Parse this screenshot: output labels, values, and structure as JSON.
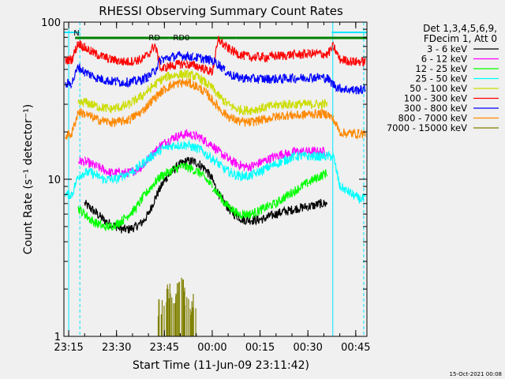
{
  "page": {
    "title": "RHESSI Observing Summary Count Rates",
    "xlabel": "Start Time (11-Jun-09 23:11:42)",
    "ylabel": "Count Rate (s⁻¹ detector⁻¹)",
    "timestamp": "15-Oct-2021 00:08",
    "legend_header": [
      "Det 1,3,4,5,6,9,",
      "FDecim 1, Att 0"
    ]
  },
  "chart_data": {
    "type": "line",
    "title": "RHESSI Observing Summary Count Rates",
    "xlabel": "Start Time (11-Jun-09 23:11:42)",
    "ylabel": "Count Rate (s⁻¹ detector⁻¹)",
    "x_unit": "minutes relative to 00:00 (11/12-Jun-09)",
    "xlim": [
      -46.5,
      48.5
    ],
    "ylim": [
      1,
      100
    ],
    "yscale": "log",
    "grid": false,
    "legend_position": "right",
    "x_ticks": [
      {
        "value": -45,
        "label": "23:15"
      },
      {
        "value": -30,
        "label": "23:30"
      },
      {
        "value": -15,
        "label": "23:45"
      },
      {
        "value": 0,
        "label": "00:00"
      },
      {
        "value": 15,
        "label": "00:15"
      },
      {
        "value": 30,
        "label": "00:30"
      },
      {
        "value": 45,
        "label": "00:45"
      }
    ],
    "y_ticks": [
      {
        "value": 1,
        "label": "1"
      },
      {
        "value": 10,
        "label": "10"
      },
      {
        "value": 100,
        "label": "100"
      }
    ],
    "x": [
      -46,
      -44,
      -42,
      -40,
      -38,
      -36,
      -34,
      -32,
      -30,
      -28,
      -26,
      -24,
      -22,
      -20,
      -18,
      -16,
      -14,
      -12,
      -10,
      -8,
      -6,
      -4,
      -2,
      0,
      2,
      4,
      6,
      8,
      10,
      12,
      14,
      16,
      18,
      20,
      22,
      24,
      26,
      28,
      30,
      32,
      34,
      36,
      38,
      40,
      42,
      44,
      46,
      48
    ],
    "gaps": [
      [
        -45.5,
        -44.5
      ],
      [
        -37.5,
        -36.5
      ],
      [
        37.5,
        38.5
      ],
      [
        46.5,
        47.5
      ]
    ],
    "series": [
      {
        "name": "3 - 6 keV",
        "color": "#000000",
        "values": [
          null,
          null,
          null,
          7.0,
          6.5,
          6.0,
          5.5,
          5.2,
          5.0,
          4.8,
          4.8,
          5.0,
          5.3,
          6.0,
          7.5,
          9.0,
          10.5,
          11.5,
          12.5,
          13.0,
          13.0,
          12.5,
          11.5,
          10.0,
          8.0,
          7.0,
          6.2,
          5.8,
          5.5,
          5.5,
          5.5,
          5.6,
          5.8,
          6.0,
          6.2,
          6.3,
          6.5,
          6.6,
          6.7,
          6.8,
          7.0,
          7.0,
          null,
          null,
          null,
          null,
          null,
          null
        ]
      },
      {
        "name": "6 - 12 keV",
        "color": "#ff00ff",
        "values": [
          null,
          null,
          13.0,
          13.0,
          12.5,
          12.0,
          11.5,
          11.0,
          11.0,
          11.0,
          11.0,
          11.5,
          12.0,
          13.5,
          15.0,
          16.5,
          17.5,
          18.5,
          19.0,
          19.5,
          19.0,
          18.5,
          17.5,
          16.5,
          15.0,
          14.0,
          13.0,
          12.5,
          12.0,
          12.0,
          12.5,
          13.0,
          13.5,
          14.0,
          14.5,
          14.5,
          15.0,
          15.0,
          15.0,
          15.0,
          15.0,
          15.0,
          null,
          null,
          null,
          null,
          null,
          null
        ]
      },
      {
        "name": "12 - 25 keV",
        "color": "#00ff00",
        "values": [
          null,
          null,
          6.5,
          6.0,
          5.5,
          5.2,
          5.0,
          5.0,
          5.2,
          5.5,
          6.0,
          6.5,
          7.5,
          8.5,
          9.5,
          10.5,
          11.0,
          11.5,
          12.0,
          12.0,
          11.5,
          11.0,
          10.0,
          9.0,
          8.0,
          7.0,
          6.5,
          6.0,
          6.0,
          6.0,
          6.2,
          6.5,
          6.8,
          7.0,
          7.5,
          8.0,
          8.5,
          9.0,
          9.5,
          10.0,
          10.5,
          11.0,
          null,
          null,
          null,
          null,
          null,
          null
        ]
      },
      {
        "name": "25 - 50 keV",
        "color": "#00ffff",
        "values": [
          8.0,
          8.0,
          10.5,
          11.0,
          11.0,
          10.5,
          10.0,
          10.0,
          10.0,
          10.5,
          11.0,
          11.5,
          12.5,
          13.5,
          14.5,
          15.5,
          16.0,
          16.5,
          16.5,
          16.5,
          16.0,
          15.5,
          14.5,
          13.5,
          12.5,
          11.5,
          11.0,
          10.5,
          10.5,
          10.5,
          11.0,
          11.5,
          12.0,
          12.5,
          13.0,
          13.5,
          14.0,
          14.0,
          14.0,
          14.0,
          14.0,
          14.0,
          14.0,
          9.0,
          8.5,
          8.0,
          7.5,
          7.5
        ]
      },
      {
        "name": "50 - 100 keV",
        "color": "#ccdd00",
        "values": [
          null,
          null,
          30.0,
          31.0,
          30.0,
          29.0,
          28.5,
          28.0,
          28.5,
          29.0,
          30.0,
          32.0,
          34.0,
          37.0,
          40.0,
          43.0,
          45.0,
          46.0,
          46.5,
          46.5,
          45.5,
          44.0,
          41.0,
          38.0,
          34.0,
          31.0,
          29.0,
          28.0,
          27.5,
          27.5,
          28.0,
          28.5,
          29.0,
          29.5,
          30.0,
          30.0,
          30.0,
          30.0,
          30.0,
          30.0,
          30.0,
          30.0,
          null,
          null,
          null,
          null,
          null,
          null
        ]
      },
      {
        "name": "100 - 300 keV",
        "color": "#ff0000",
        "values": [
          57.0,
          58.0,
          74.0,
          69.0,
          65.0,
          62.0,
          60.0,
          58.0,
          57.0,
          56.0,
          56.0,
          57.0,
          58.0,
          62.0,
          72.0,
          50.0,
          52.0,
          53.0,
          54.0,
          54.0,
          53.0,
          52.0,
          50.0,
          48.0,
          78.0,
          70.0,
          66.0,
          63.0,
          61.0,
          60.0,
          60.0,
          60.0,
          60.0,
          61.0,
          61.0,
          62.0,
          62.0,
          62.0,
          63.0,
          63.0,
          63.0,
          62.0,
          70.0,
          58.0,
          57.0,
          56.0,
          56.0,
          56.0
        ]
      },
      {
        "name": "300 - 800 keV",
        "color": "#0000ff",
        "values": [
          40.0,
          41.0,
          52.0,
          48.0,
          46.0,
          44.0,
          43.0,
          42.0,
          42.0,
          41.5,
          41.5,
          42.0,
          43.0,
          45.0,
          49.0,
          58.0,
          59.0,
          60.0,
          61.0,
          61.0,
          60.0,
          59.0,
          58.0,
          57.0,
          54.0,
          49.0,
          46.0,
          44.5,
          44.0,
          43.5,
          43.5,
          43.5,
          43.5,
          43.5,
          43.5,
          44.0,
          44.0,
          44.0,
          44.5,
          44.5,
          44.5,
          44.0,
          40.0,
          38.0,
          37.5,
          37.0,
          37.0,
          37.0
        ]
      },
      {
        "name": "800 - 7000 keV",
        "color": "#ff8800",
        "values": [
          19.0,
          19.5,
          27.0,
          26.0,
          25.0,
          24.0,
          23.5,
          23.0,
          23.0,
          23.5,
          24.0,
          25.5,
          27.0,
          30.0,
          33.0,
          36.0,
          38.5,
          40.0,
          41.0,
          41.0,
          40.0,
          38.0,
          35.5,
          32.0,
          28.5,
          26.0,
          24.5,
          23.5,
          23.0,
          23.0,
          23.5,
          24.0,
          24.5,
          25.0,
          25.5,
          25.5,
          25.5,
          25.5,
          26.0,
          26.0,
          26.0,
          26.0,
          24.0,
          20.0,
          19.5,
          19.5,
          19.5,
          19.5
        ]
      },
      {
        "name": "7000 - 15000 keV",
        "color": "#808000",
        "values": [
          null,
          null,
          null,
          null,
          null,
          null,
          null,
          null,
          null,
          null,
          null,
          null,
          null,
          null,
          null,
          1.6,
          2.0,
          1.8,
          2.2,
          1.9,
          1.7,
          null,
          null,
          null,
          null,
          null,
          null,
          null,
          null,
          null,
          null,
          null,
          null,
          null,
          null,
          null,
          null,
          null,
          null,
          null,
          null,
          null,
          null,
          null,
          null,
          null,
          null,
          null
        ]
      }
    ],
    "annotations": [
      {
        "text": "N",
        "kind": "night",
        "x_start": -46.5,
        "x_end": -41.5,
        "color": "#00e5ff"
      },
      {
        "text": "",
        "kind": "night",
        "x_start": 37.5,
        "x_end": 48.5,
        "color": "#00e5ff"
      },
      {
        "text": "RD",
        "kind": "bar",
        "x_start": -43,
        "x_end": -13.5,
        "color": "#008000"
      },
      {
        "text": "RD0",
        "kind": "bar",
        "x_start": -13.5,
        "x_end": 7.5,
        "color": "#008000"
      },
      {
        "text": "",
        "kind": "bar",
        "x_start": 7.5,
        "x_end": 48.5,
        "color": "#008000"
      }
    ],
    "vlines": [
      {
        "x": -45.0,
        "style": "solid",
        "color": "#00e5ff"
      },
      {
        "x": -41.5,
        "style": "dashed",
        "color": "#00e5ff"
      },
      {
        "x": 37.8,
        "style": "solid",
        "color": "#00e5ff"
      },
      {
        "x": 47.5,
        "style": "dashed",
        "color": "#00e5ff"
      }
    ]
  }
}
